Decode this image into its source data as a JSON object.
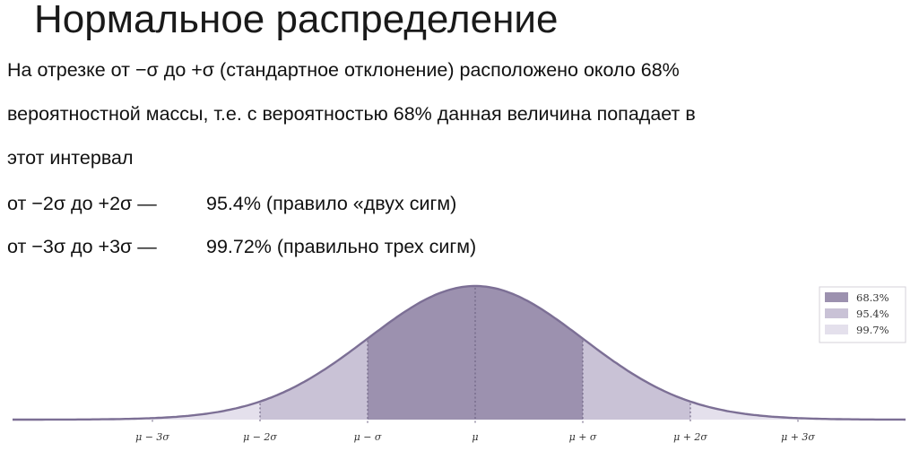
{
  "slide": {
    "title": "Нормальное распределение",
    "paragraph": [
      "На отрезке от −σ до +σ (стандартное отклонение) расположено около 68%",
      "вероятностной массы, т.е. с вероятностью 68% данная величина попадает в",
      "этот интервал"
    ],
    "rules": [
      {
        "range": "от −2σ до +2σ — ",
        "value": "95.4% (правило «двух сигм)"
      },
      {
        "range": "от −3σ до +3σ — ",
        "value": "99.72% (правильно трех сигм)"
      }
    ]
  },
  "chart_data": {
    "type": "area",
    "distribution": "normal",
    "mean": 0,
    "sd": 1,
    "xlim": [
      -4.3,
      4.0
    ],
    "title": "",
    "xlabel": "",
    "ylabel": "",
    "x_ticks": [
      {
        "value": -3,
        "label": "μ − 3σ"
      },
      {
        "value": -2,
        "label": "μ − 2σ"
      },
      {
        "value": -1,
        "label": "μ − σ"
      },
      {
        "value": 0,
        "label": "μ"
      },
      {
        "value": 1,
        "label": "μ + σ"
      },
      {
        "value": 2,
        "label": "μ + 2σ"
      },
      {
        "value": 3,
        "label": "μ + 3σ"
      }
    ],
    "series": [
      {
        "name": "68.3%",
        "from": -1,
        "to": 1,
        "color": "#9c91af"
      },
      {
        "name": "95.4%",
        "from": -2,
        "to": 2,
        "color": "#c9c2d6"
      },
      {
        "name": "99.7%",
        "from": -3,
        "to": 3,
        "color": "#e4e0ec"
      }
    ],
    "curve_color": "#7c6f95",
    "legend": "top-right",
    "grid": false
  }
}
